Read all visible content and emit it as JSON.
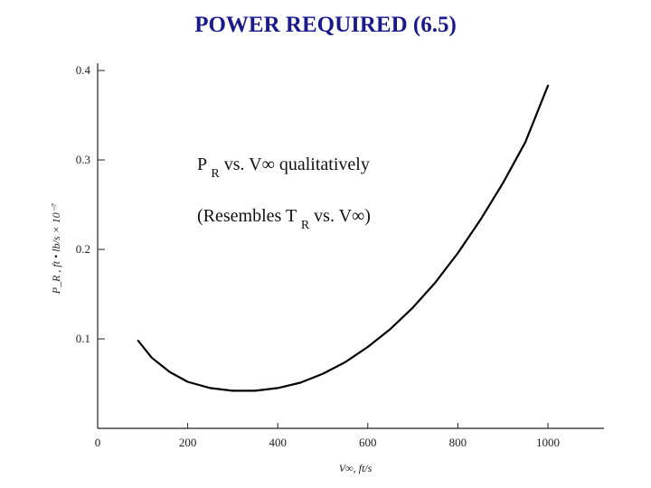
{
  "slide": {
    "title": "POWER REQUIRED (6.5)"
  },
  "annotations": {
    "line1": {
      "p": "P",
      "sub": "R",
      "rest": " vs. V∞ qualitatively"
    },
    "line2": {
      "pre": "(Resembles T",
      "sub": "R",
      "rest": " vs. V∞)"
    }
  },
  "chart_data": {
    "type": "line",
    "title": "",
    "xlabel": "V∞,  ft/s",
    "ylabel": "P_R , ft • lb/s × 10⁻⁷",
    "xlim": [
      0,
      1060
    ],
    "ylim": [
      0,
      0.42
    ],
    "x_ticks": [
      0,
      200,
      400,
      600,
      800,
      1000
    ],
    "x_tick_labels": [
      "0",
      "200",
      "400",
      "600",
      "800",
      "1000"
    ],
    "y_ticks": [
      0.1,
      0.2,
      0.3,
      0.4
    ],
    "y_tick_labels": [
      "0.1",
      "0.2",
      "0.3",
      "0.4"
    ],
    "grid": false,
    "series": [
      {
        "color": "#000000",
        "x": [
          90,
          120,
          160,
          200,
          250,
          300,
          350,
          400,
          450,
          500,
          550,
          600,
          650,
          700,
          750,
          800,
          850,
          900,
          950,
          1000
        ],
        "y": [
          0.098,
          0.079,
          0.063,
          0.052,
          0.045,
          0.042,
          0.042,
          0.045,
          0.051,
          0.061,
          0.074,
          0.091,
          0.111,
          0.135,
          0.163,
          0.196,
          0.233,
          0.274,
          0.32,
          0.383
        ]
      }
    ]
  }
}
